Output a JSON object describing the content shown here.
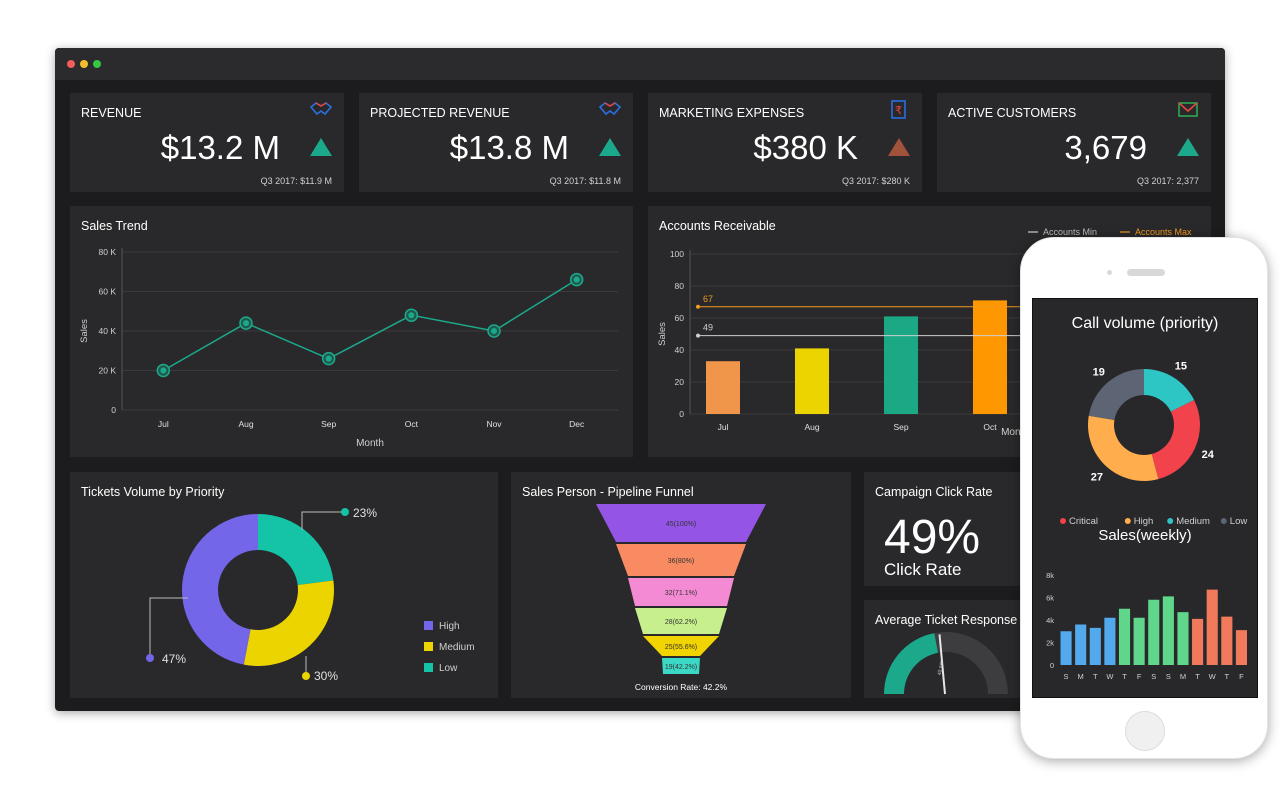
{
  "kpis": [
    {
      "title": "REVENUE",
      "value": "$13.2 M",
      "sub": "Q3 2017: $11.9 M",
      "trend": "up",
      "icon": "handshake-icon"
    },
    {
      "title": "PROJECTED REVENUE",
      "value": "$13.8 M",
      "sub": "Q3 2017: $11.8 M",
      "trend": "up",
      "icon": "handshake-icon"
    },
    {
      "title": "MARKETING EXPENSES",
      "value": "$380 K",
      "sub": "Q3 2017: $280 K",
      "trend": "down",
      "icon": "rupee-document-icon"
    },
    {
      "title": "ACTIVE CUSTOMERS",
      "value": "3,679",
      "sub": "Q3 2017: 2,377",
      "trend": "up",
      "icon": "envelope-icon"
    }
  ],
  "colors": {
    "up": "#1ca98b",
    "down": "#a0523a",
    "accent": "#1ca98b"
  },
  "sales_trend": {
    "title": "Sales Trend",
    "chart_data": {
      "type": "line",
      "categories": [
        "Jul",
        "Aug",
        "Sep",
        "Oct",
        "Nov",
        "Dec"
      ],
      "values": [
        20000,
        44000,
        26000,
        48000,
        40000,
        66000
      ],
      "ylim": [
        0,
        80000
      ],
      "yticks": [
        "0",
        "20 K",
        "40 K",
        "60 K",
        "80 K"
      ],
      "xlabel": "Month",
      "ylabel": "Sales"
    }
  },
  "accounts_receivable": {
    "title": "Accounts Receivable",
    "legend": [
      "Accounts Min",
      "Accounts Max"
    ],
    "chart_data": {
      "type": "bar",
      "categories": [
        "Jul",
        "Aug",
        "Sep",
        "Oct"
      ],
      "values": [
        33,
        41,
        61,
        71
      ],
      "bar_colors": [
        "#f0964a",
        "#ecd400",
        "#1ba985",
        "#ff9800"
      ],
      "ylim": [
        0,
        100
      ],
      "yticks": [
        "0",
        "20",
        "40",
        "60",
        "80",
        "100"
      ],
      "max_line": 67,
      "min_line": 49,
      "max_label": "67",
      "min_label": "49",
      "xlabel": "Month",
      "ylabel": "Sales"
    }
  },
  "tickets_volume": {
    "title": "Tickets Volume by Priority",
    "chart_data": {
      "type": "pie",
      "slices": [
        {
          "label": "High",
          "value": 47,
          "text": "47%",
          "color": "#7366e8"
        },
        {
          "label": "Medium",
          "value": 30,
          "text": "30%",
          "color": "#ecd400"
        },
        {
          "label": "Low",
          "value": 23,
          "text": "23%",
          "color": "#15c3a6"
        }
      ]
    }
  },
  "pipeline_funnel": {
    "title": "Sales Person - Pipeline Funnel",
    "chart_data": {
      "type": "bar",
      "stages": [
        {
          "label": "45(100%)",
          "color": "#9455e6"
        },
        {
          "label": "36(80%)",
          "color": "#f98b62"
        },
        {
          "label": "32(71.1%)",
          "color": "#f58ad4"
        },
        {
          "label": "28(62.2%)",
          "color": "#c8ef8e"
        },
        {
          "label": "25(55.6%)",
          "color": "#f2d400"
        },
        {
          "label": "19(42.2%)",
          "color": "#3cd8c6"
        }
      ]
    },
    "footer": "Conversion Rate: 42.2%"
  },
  "campaign": {
    "title": "Campaign Click Rate",
    "value": "49%",
    "label": "Click Rate"
  },
  "ticket_response": {
    "title": "Average Ticket Response",
    "gauge_label": "40 min",
    "gauge_fraction": 0.44
  },
  "phone": {
    "call_volume": {
      "title": "Call volume (priority)",
      "chart_data": {
        "type": "pie",
        "slices": [
          {
            "label": "Critical",
            "value": 24,
            "color": "#f2424b"
          },
          {
            "label": "High",
            "value": 27,
            "color": "#ffad4d"
          },
          {
            "label": "Medium",
            "value": 15,
            "color": "#2dc6c4"
          },
          {
            "label": "Low",
            "value": 19,
            "color": "#5d6575"
          }
        ]
      }
    },
    "sales_weekly": {
      "title": "Sales(weekly)",
      "chart_data": {
        "type": "bar",
        "categories": [
          "S",
          "M",
          "T",
          "W",
          "T",
          "F",
          "S",
          "S",
          "M",
          "T",
          "W",
          "T",
          "F"
        ],
        "values": [
          3000,
          3600,
          3300,
          4200,
          5000,
          4200,
          5800,
          6100,
          4700,
          4100,
          6700,
          4300,
          3100
        ],
        "colors": [
          "#52a9ec",
          "#52a9ec",
          "#52a9ec",
          "#52a9ec",
          "#5fd68a",
          "#5fd68a",
          "#5fd68a",
          "#5fd68a",
          "#5fd68a",
          "#f27a5c",
          "#f27a5c",
          "#f27a5c",
          "#f27a5c"
        ],
        "ylim": [
          0,
          8000
        ],
        "yticks": [
          "0",
          "2k",
          "4k",
          "6k",
          "8k"
        ]
      }
    }
  }
}
